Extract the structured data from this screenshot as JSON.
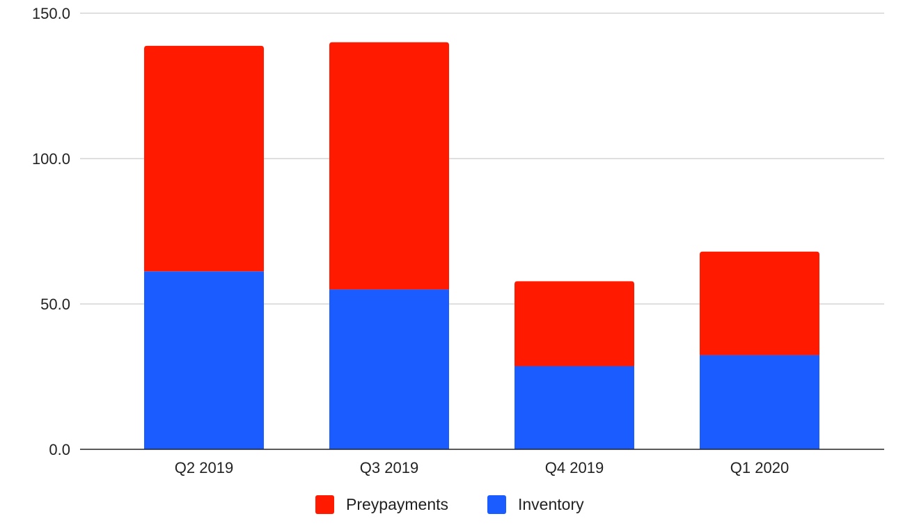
{
  "chart_data": {
    "type": "bar",
    "stacked": true,
    "categories": [
      "Q2 2019",
      "Q3 2019",
      "Q4 2019",
      "Q1 2020"
    ],
    "series": [
      {
        "name": "Inventory",
        "color": "#1a5cff",
        "values": [
          61.2,
          55.0,
          28.6,
          32.4
        ]
      },
      {
        "name": "Preypayments",
        "color": "#ff1a00",
        "values": [
          77.6,
          85.0,
          29.2,
          35.6
        ]
      }
    ],
    "y_ticks": [
      "0.0",
      "50.0",
      "100.0",
      "150.0"
    ],
    "ylim": [
      0,
      150
    ],
    "grid": true,
    "legend": {
      "position": "bottom",
      "order": [
        "Preypayments",
        "Inventory"
      ]
    },
    "colors": {
      "gridline": "#cccccc",
      "axis": "#222222"
    }
  }
}
